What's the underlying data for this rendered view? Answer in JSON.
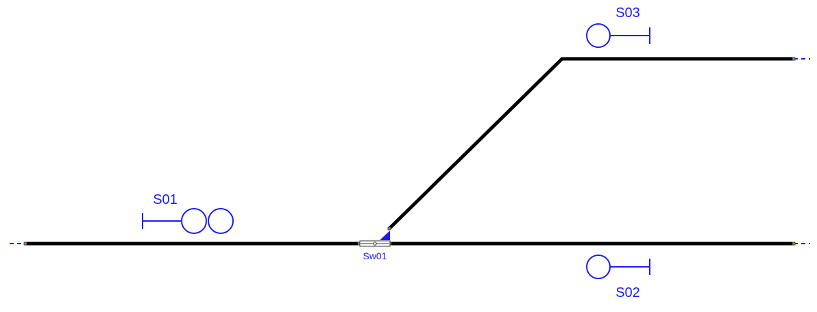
{
  "colors": {
    "track": "#000000",
    "signal": "#1a1aff",
    "background": "#ffffff"
  },
  "signals": {
    "s01": {
      "label": "S01",
      "aspects": 2,
      "direction": "right"
    },
    "s02": {
      "label": "S02",
      "aspects": 1,
      "direction": "left"
    },
    "s03": {
      "label": "S03",
      "aspects": 1,
      "direction": "left"
    }
  },
  "switches": {
    "sw01": {
      "label": "Sw01",
      "state": "diverging"
    }
  }
}
